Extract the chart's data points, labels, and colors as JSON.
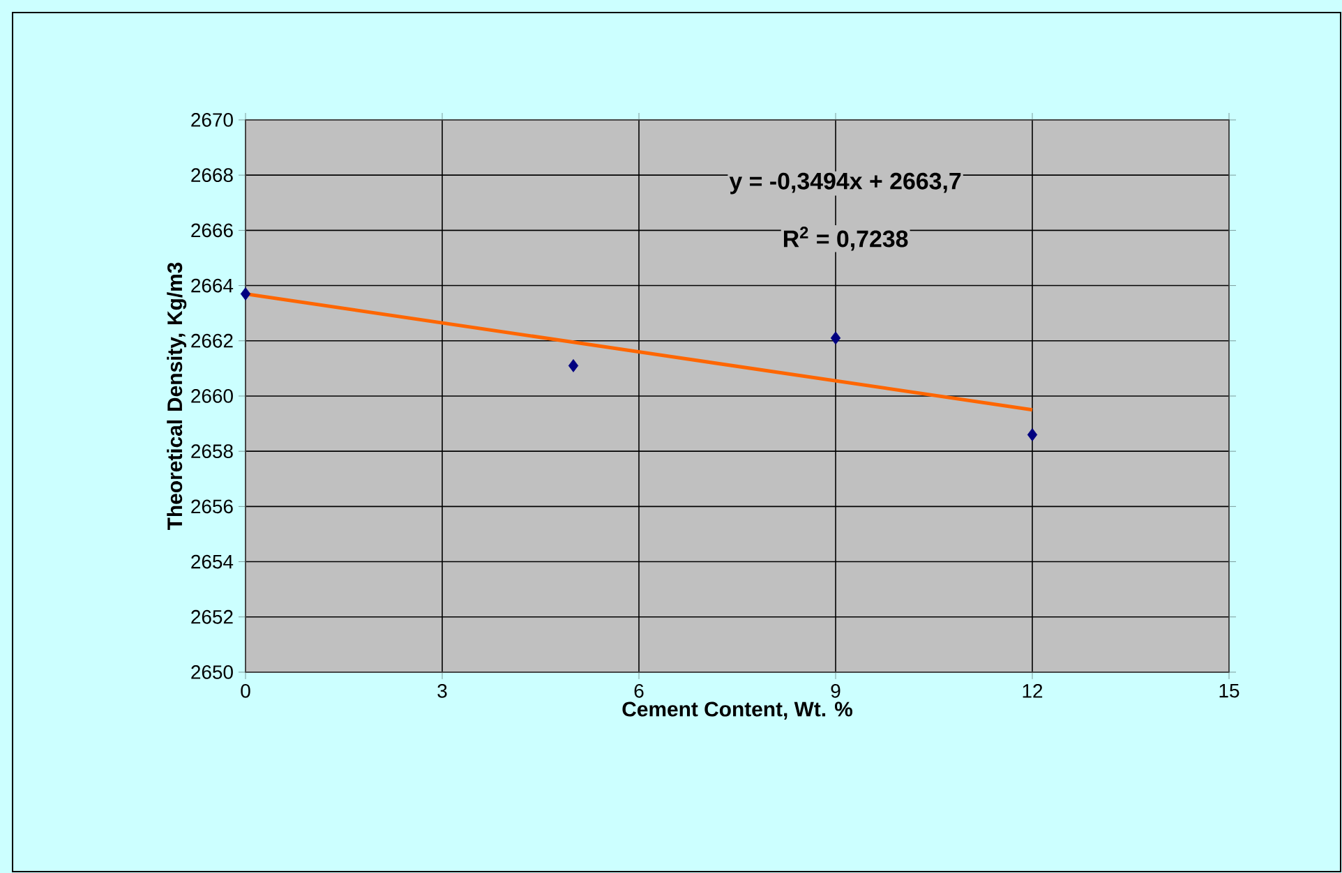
{
  "chart_data": {
    "type": "scatter",
    "xlabel": "Cement Content, Wt. %",
    "ylabel": "Theoretical Density, Kg/m3",
    "annotations": [
      "y = -0,3494x + 2663,7",
      "R$^{2}$ = 0,7238"
    ],
    "series": [
      {
        "color": "#000080",
        "marker": "diamond",
        "x": [
          0,
          5,
          9,
          12
        ],
        "values": [
          2663.7,
          2661.1,
          2662.1,
          2658.6
        ]
      },
      {
        "type": "line",
        "marker": "none",
        "color": "#ff6600",
        "x": [
          0,
          12
        ],
        "values": [
          2663.7,
          2659.5
        ]
      }
    ],
    "xlim": [
      0,
      15
    ],
    "xticks": [
      0,
      3,
      6,
      9,
      12,
      15
    ],
    "ylim": [
      2650,
      2670
    ],
    "yticks": [
      2650,
      2652,
      2654,
      2656,
      2658,
      2660,
      2662,
      2664,
      2666,
      2668,
      2670
    ],
    "grid": true
  }
}
